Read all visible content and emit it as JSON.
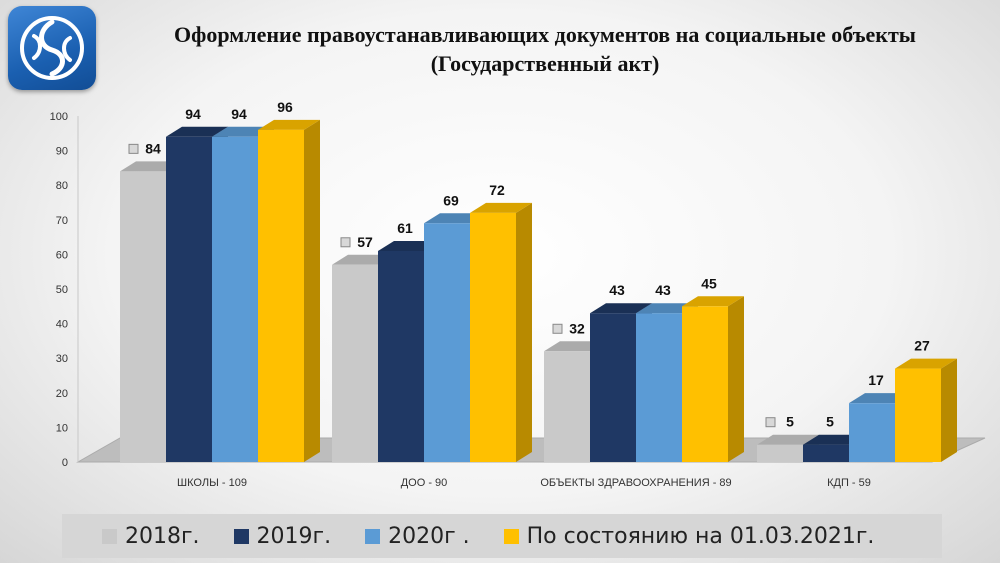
{
  "title_line1": "Оформление правоустанавливающих документов на социальные объекты",
  "title_line2": "(Государственный акт)",
  "chart_data": {
    "type": "bar",
    "categories": [
      "ШКОЛЫ - 109",
      "ДОО - 90",
      "ОБЪЕКТЫ ЗДРАВООХРАНЕНИЯ - 89",
      "КДП - 59"
    ],
    "series": [
      {
        "name": "2018г.",
        "color": "#c9c9c9",
        "values": [
          84,
          57,
          32,
          5
        ]
      },
      {
        "name": "2019г.",
        "color": "#1f3864",
        "values": [
          94,
          61,
          43,
          5
        ]
      },
      {
        "name": "2020г .",
        "color": "#5b9bd5",
        "values": [
          94,
          69,
          43,
          17
        ]
      },
      {
        "name": "По состоянию на 01.03.2021г.",
        "color": "#ffc000",
        "values": [
          96,
          72,
          45,
          27
        ]
      }
    ],
    "ylim": [
      0,
      100
    ],
    "yticks": [
      0,
      10,
      20,
      30,
      40,
      50,
      60,
      70,
      80,
      90,
      100
    ],
    "grid": false,
    "legend_position": "bottom"
  }
}
